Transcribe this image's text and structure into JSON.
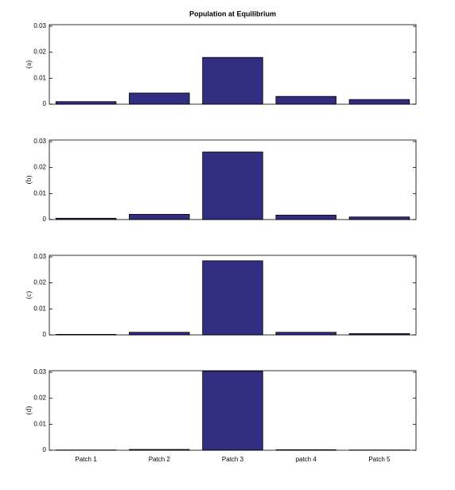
{
  "chart_data": [
    {
      "type": "bar",
      "title": "Population at Equilibrium",
      "ylabel": "(a)",
      "values": [
        0.001,
        0.0043,
        0.018,
        0.003,
        0.0018
      ],
      "color": "#312e82",
      "ylim": [
        0,
        0.0306
      ],
      "yticks": [
        0,
        0.01,
        0.02,
        0.03
      ]
    },
    {
      "type": "bar",
      "ylabel": "(b)",
      "values": [
        0.0005,
        0.002,
        0.026,
        0.0017,
        0.001
      ],
      "color": "#312e82",
      "ylim": [
        0,
        0.0306
      ],
      "yticks": [
        0,
        0.01,
        0.02,
        0.03
      ]
    },
    {
      "type": "bar",
      "ylabel": "(c)",
      "values": [
        0.0002,
        0.001,
        0.0285,
        0.001,
        0.0005
      ],
      "color": "#312e82",
      "ylim": [
        0,
        0.0306
      ],
      "yticks": [
        0,
        0.01,
        0.02,
        0.03
      ]
    },
    {
      "type": "bar",
      "ylabel": "(d)",
      "categories": [
        "Patch 1",
        "Patch 2",
        "Patch 3",
        "patch 4",
        "Patch 5"
      ],
      "values": [
        0.0001,
        0.0003,
        0.0304,
        0.0002,
        0.0001
      ],
      "color": "#312e82",
      "ylim": [
        0,
        0.0306
      ],
      "yticks": [
        0,
        0.01,
        0.02,
        0.03
      ]
    }
  ]
}
